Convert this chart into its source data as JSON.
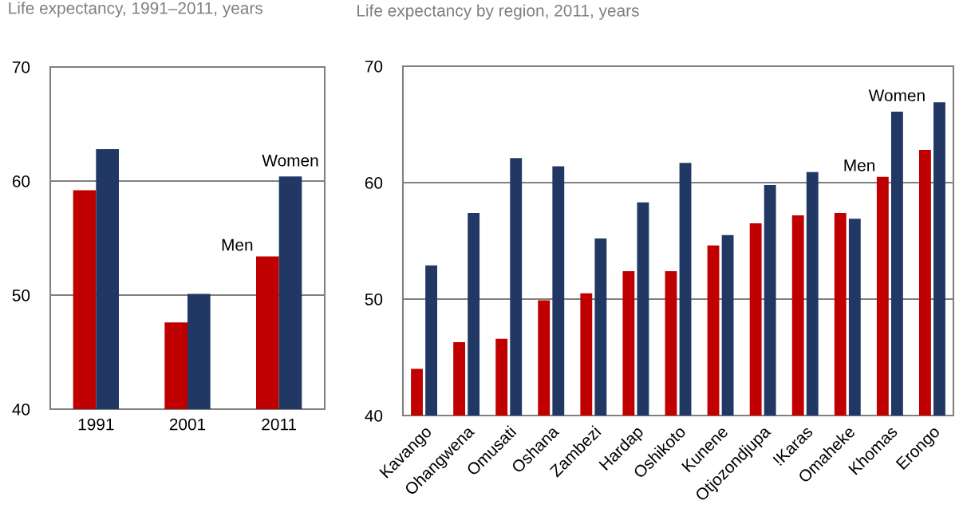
{
  "chart_data": [
    {
      "type": "bar",
      "title": "Life expectancy, 1991–2011, years",
      "categories": [
        "1991",
        "2001",
        "2011"
      ],
      "ylim": [
        40,
        70
      ],
      "yticks": [
        40,
        50,
        60,
        70
      ],
      "grid": "y",
      "series": [
        {
          "name": "Men",
          "color": "#c00000",
          "values": [
            59.2,
            47.6,
            53.4
          ]
        },
        {
          "name": "Women",
          "color": "#213864",
          "values": [
            62.8,
            50.1,
            60.4
          ]
        }
      ]
    },
    {
      "type": "bar",
      "title": "Life expectancy by region, 2011, years",
      "categories": [
        "Kavango",
        "Ohangwena",
        "Omusati",
        "Oshana",
        "Zambezi",
        "Hardap",
        "Oshikoto",
        "Kunene",
        "Otjozondjupa",
        "!Karas",
        "Omaheke",
        "Khomas",
        "Erongo"
      ],
      "ylim": [
        40,
        70
      ],
      "yticks": [
        40,
        50,
        60,
        70
      ],
      "grid": "y",
      "series": [
        {
          "name": "Men",
          "color": "#c00000",
          "values": [
            44.0,
            46.3,
            46.6,
            49.9,
            50.5,
            52.4,
            52.4,
            54.6,
            56.5,
            57.2,
            57.4,
            60.5,
            62.8
          ]
        },
        {
          "name": "Women",
          "color": "#213864",
          "values": [
            52.9,
            57.4,
            62.1,
            61.4,
            55.2,
            58.3,
            61.7,
            55.5,
            59.8,
            60.9,
            56.9,
            66.1,
            66.9
          ]
        }
      ]
    }
  ]
}
